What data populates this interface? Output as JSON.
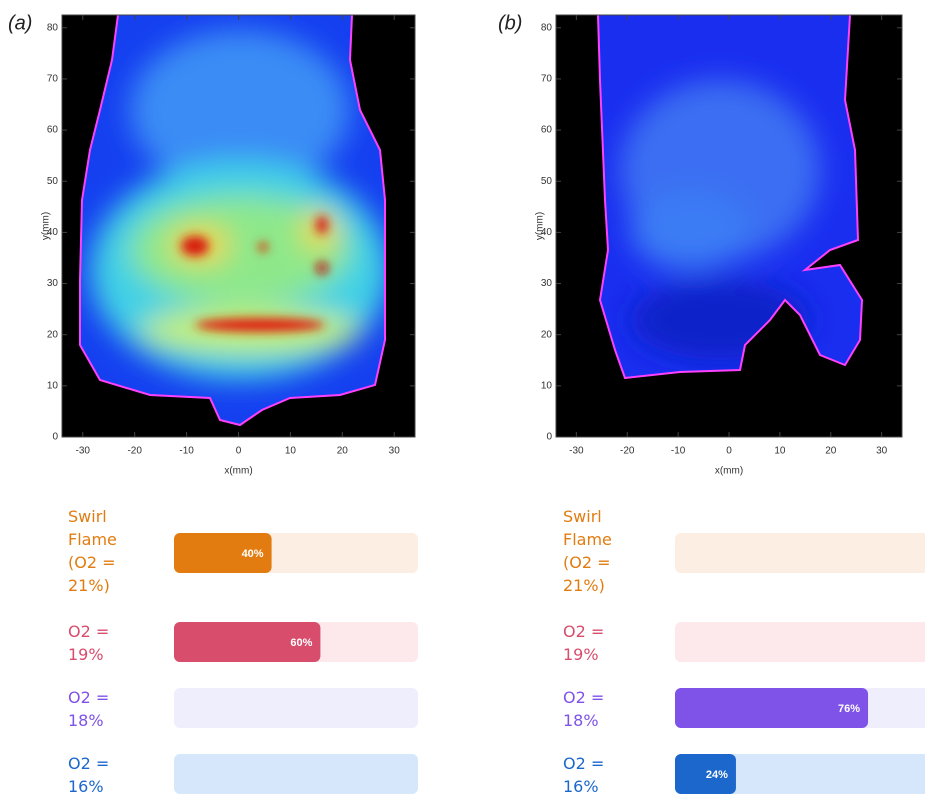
{
  "panels": [
    {
      "label": "(a)",
      "xlabel": "x(mm)",
      "ylabel": "y(mm)",
      "xlim": [
        -34,
        34
      ],
      "ylim": [
        0,
        82.5
      ],
      "xticks": [
        -30,
        -20,
        -10,
        0,
        10,
        20,
        30
      ],
      "yticks": [
        0,
        10,
        20,
        30,
        40,
        50,
        60,
        70,
        80
      ],
      "options": [
        {
          "label": "Swirl Flame (O2 = 21%)",
          "color": "#e27c10",
          "track": "#fdeee3",
          "value": 40,
          "value_label": "40%"
        },
        {
          "label": "O2 = 19%",
          "color": "#d84c6c",
          "track": "#fde8eb",
          "value": 60,
          "value_label": "60%"
        },
        {
          "label": "O2 = 18%",
          "color": "#7f52e8",
          "track": "#efeefc",
          "value": 0
        },
        {
          "label": "O2 = 16%",
          "color": "#1c67cc",
          "track": "#d6e6fb",
          "value": 0
        }
      ]
    },
    {
      "label": "(b)",
      "xlabel": "x(mm)",
      "ylabel": "y(mm)",
      "xlim": [
        -34,
        34
      ],
      "ylim": [
        0,
        82.5
      ],
      "xticks": [
        -30,
        -20,
        -10,
        0,
        10,
        20,
        30
      ],
      "yticks": [
        0,
        10,
        20,
        30,
        40,
        50,
        60,
        70,
        80
      ],
      "options": [
        {
          "label": "Swirl Flame (O2 = 21%)",
          "color": "#e27c10",
          "track": "#fdeee3",
          "value": 0
        },
        {
          "label": "O2 = 19%",
          "color": "#d84c6c",
          "track": "#fde8eb",
          "value": 0
        },
        {
          "label": "O2 = 18%",
          "color": "#7f52e8",
          "track": "#efeefc",
          "value": 76,
          "value_label": "76%"
        },
        {
          "label": "O2 = 16%",
          "color": "#1c67cc",
          "track": "#d6e6fb",
          "value": 24,
          "value_label": "24%"
        }
      ]
    }
  ]
}
